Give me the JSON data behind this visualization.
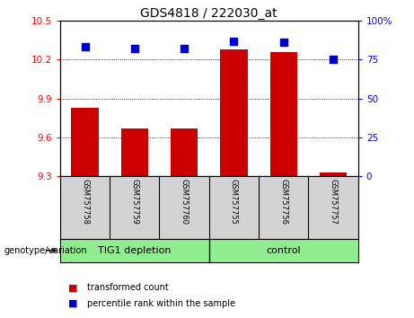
{
  "title": "GDS4818 / 222030_at",
  "samples": [
    "GSM757758",
    "GSM757759",
    "GSM757760",
    "GSM757755",
    "GSM757756",
    "GSM757757"
  ],
  "group_labels": [
    "TIG1 depletion",
    "control"
  ],
  "group_boundary": 3,
  "red_values": [
    9.83,
    9.67,
    9.67,
    10.28,
    10.26,
    9.33
  ],
  "blue_values": [
    83,
    82,
    82,
    87,
    86,
    75
  ],
  "ylim_left": [
    9.3,
    10.5
  ],
  "ylim_right": [
    0,
    100
  ],
  "yticks_left": [
    9.3,
    9.6,
    9.9,
    10.2,
    10.5
  ],
  "yticks_right": [
    0,
    25,
    50,
    75,
    100
  ],
  "ytick_labels_right": [
    "0",
    "25",
    "50",
    "75",
    "100%"
  ],
  "bar_color": "#cc0000",
  "dot_color": "#0000cc",
  "background_label": "#d3d3d3",
  "background_group": "#90EE90",
  "title_fontsize": 10,
  "genotype_label": "genotype/variation",
  "legend_entries": [
    "transformed count",
    "percentile rank within the sample"
  ],
  "bar_width": 0.55,
  "dot_size": 30
}
